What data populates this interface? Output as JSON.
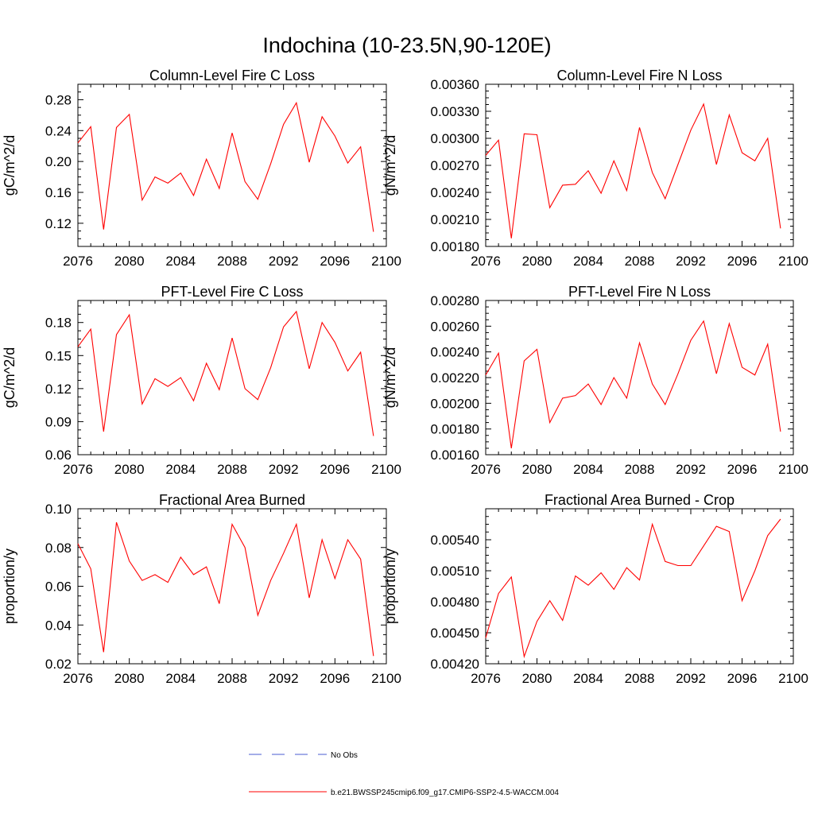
{
  "figure": {
    "title": "Indochina (10-23.5N,90-120E)"
  },
  "legend": {
    "items": [
      {
        "label": "No Obs",
        "color": "#4a5bd1",
        "style": "dashed"
      },
      {
        "label": "b.e21.BWSSP245cmip6.f09_g17.CMIP6-SSP2-4.5-WACCM.004",
        "color": "#ff0000",
        "style": "solid"
      }
    ]
  },
  "chart_data": [
    {
      "type": "line",
      "title": "Column-Level Fire C Loss",
      "xlabel": "",
      "ylabel": "gC/m^2/d",
      "xlim": [
        2076,
        2100
      ],
      "ylim": [
        0.09,
        0.3
      ],
      "xticks": [
        2076,
        2080,
        2084,
        2088,
        2092,
        2096,
        2100
      ],
      "yticks": [
        0.12,
        0.16,
        0.2,
        0.24,
        0.28
      ],
      "ytick_decimals": 2,
      "x": [
        2076,
        2077,
        2078,
        2079,
        2080,
        2081,
        2082,
        2083,
        2084,
        2085,
        2086,
        2087,
        2088,
        2089,
        2090,
        2091,
        2092,
        2093,
        2094,
        2095,
        2096,
        2097,
        2098,
        2099
      ],
      "series": [
        {
          "color": "#ff0000",
          "values": [
            0.224,
            0.245,
            0.112,
            0.244,
            0.261,
            0.15,
            0.18,
            0.172,
            0.185,
            0.156,
            0.203,
            0.165,
            0.237,
            0.174,
            0.151,
            0.197,
            0.248,
            0.276,
            0.199,
            0.258,
            0.233,
            0.198,
            0.219,
            0.109
          ]
        }
      ]
    },
    {
      "type": "line",
      "title": "Column-Level Fire N Loss",
      "xlabel": "",
      "ylabel": "gN/m^2/d",
      "xlim": [
        2076,
        2100
      ],
      "ylim": [
        0.0018,
        0.0036
      ],
      "xticks": [
        2076,
        2080,
        2084,
        2088,
        2092,
        2096,
        2100
      ],
      "yticks": [
        0.0018,
        0.0021,
        0.0024,
        0.0027,
        0.003,
        0.0033,
        0.0036
      ],
      "ytick_decimals": 5,
      "x": [
        2076,
        2077,
        2078,
        2079,
        2080,
        2081,
        2082,
        2083,
        2084,
        2085,
        2086,
        2087,
        2088,
        2089,
        2090,
        2091,
        2092,
        2093,
        2094,
        2095,
        2096,
        2097,
        2098,
        2099
      ],
      "series": [
        {
          "color": "#ff0000",
          "values": [
            0.00281,
            0.00298,
            0.00189,
            0.00305,
            0.00304,
            0.00223,
            0.00248,
            0.00249,
            0.00264,
            0.00239,
            0.00275,
            0.00242,
            0.00312,
            0.00262,
            0.00233,
            0.00271,
            0.00309,
            0.00338,
            0.00271,
            0.00326,
            0.00284,
            0.00275,
            0.003,
            0.002
          ]
        }
      ]
    },
    {
      "type": "line",
      "title": "PFT-Level Fire C Loss",
      "xlabel": "",
      "ylabel": "gC/m^2/d",
      "xlim": [
        2076,
        2100
      ],
      "ylim": [
        0.06,
        0.2
      ],
      "xticks": [
        2076,
        2080,
        2084,
        2088,
        2092,
        2096,
        2100
      ],
      "yticks": [
        0.06,
        0.09,
        0.12,
        0.15,
        0.18
      ],
      "ytick_decimals": 2,
      "x": [
        2076,
        2077,
        2078,
        2079,
        2080,
        2081,
        2082,
        2083,
        2084,
        2085,
        2086,
        2087,
        2088,
        2089,
        2090,
        2091,
        2092,
        2093,
        2094,
        2095,
        2096,
        2097,
        2098,
        2099
      ],
      "series": [
        {
          "color": "#ff0000",
          "values": [
            0.158,
            0.174,
            0.081,
            0.169,
            0.187,
            0.106,
            0.129,
            0.122,
            0.13,
            0.109,
            0.143,
            0.119,
            0.166,
            0.12,
            0.11,
            0.139,
            0.176,
            0.19,
            0.138,
            0.18,
            0.162,
            0.136,
            0.153,
            0.077
          ]
        }
      ]
    },
    {
      "type": "line",
      "title": "PFT-Level Fire N Loss",
      "xlabel": "",
      "ylabel": "gN/m^2/d",
      "xlim": [
        2076,
        2100
      ],
      "ylim": [
        0.0016,
        0.0028
      ],
      "xticks": [
        2076,
        2080,
        2084,
        2088,
        2092,
        2096,
        2100
      ],
      "yticks": [
        0.0016,
        0.0018,
        0.002,
        0.0022,
        0.0024,
        0.0026,
        0.0028
      ],
      "ytick_decimals": 5,
      "x": [
        2076,
        2077,
        2078,
        2079,
        2080,
        2081,
        2082,
        2083,
        2084,
        2085,
        2086,
        2087,
        2088,
        2089,
        2090,
        2091,
        2092,
        2093,
        2094,
        2095,
        2096,
        2097,
        2098,
        2099
      ],
      "series": [
        {
          "color": "#ff0000",
          "values": [
            0.00222,
            0.00239,
            0.00165,
            0.00233,
            0.00242,
            0.00185,
            0.00204,
            0.00206,
            0.00215,
            0.00199,
            0.0022,
            0.00204,
            0.00247,
            0.00215,
            0.00199,
            0.00223,
            0.00249,
            0.00264,
            0.00223,
            0.00262,
            0.00228,
            0.00222,
            0.00246,
            0.00178
          ]
        }
      ]
    },
    {
      "type": "line",
      "title": "Fractional Area Burned",
      "xlabel": "",
      "ylabel": "proportion/y",
      "xlim": [
        2076,
        2100
      ],
      "ylim": [
        0.02,
        0.1
      ],
      "xticks": [
        2076,
        2080,
        2084,
        2088,
        2092,
        2096,
        2100
      ],
      "yticks": [
        0.02,
        0.04,
        0.06,
        0.08,
        0.1
      ],
      "ytick_decimals": 2,
      "x": [
        2076,
        2077,
        2078,
        2079,
        2080,
        2081,
        2082,
        2083,
        2084,
        2085,
        2086,
        2087,
        2088,
        2089,
        2090,
        2091,
        2092,
        2093,
        2094,
        2095,
        2096,
        2097,
        2098,
        2099
      ],
      "series": [
        {
          "color": "#ff0000",
          "values": [
            0.082,
            0.069,
            0.026,
            0.093,
            0.073,
            0.063,
            0.066,
            0.062,
            0.075,
            0.066,
            0.07,
            0.051,
            0.092,
            0.08,
            0.045,
            0.063,
            0.077,
            0.092,
            0.054,
            0.084,
            0.064,
            0.084,
            0.074,
            0.024
          ]
        }
      ]
    },
    {
      "type": "line",
      "title": "Fractional Area Burned - Crop",
      "xlabel": "",
      "ylabel": "proportion/y",
      "xlim": [
        2076,
        2100
      ],
      "ylim": [
        0.0042,
        0.0057
      ],
      "xticks": [
        2076,
        2080,
        2084,
        2088,
        2092,
        2096,
        2100
      ],
      "yticks": [
        0.0042,
        0.0045,
        0.0048,
        0.0051,
        0.0054
      ],
      "ytick_decimals": 5,
      "x": [
        2076,
        2077,
        2078,
        2079,
        2080,
        2081,
        2082,
        2083,
        2084,
        2085,
        2086,
        2087,
        2088,
        2089,
        2090,
        2091,
        2092,
        2093,
        2094,
        2095,
        2096,
        2097,
        2098,
        2099
      ],
      "series": [
        {
          "color": "#ff0000",
          "values": [
            0.00445,
            0.00488,
            0.00504,
            0.00427,
            0.00461,
            0.00481,
            0.00462,
            0.00505,
            0.00496,
            0.00508,
            0.00492,
            0.00513,
            0.00501,
            0.00555,
            0.00519,
            0.00515,
            0.00515,
            0.00534,
            0.00553,
            0.00548,
            0.00481,
            0.0051,
            0.00544,
            0.0056
          ]
        }
      ]
    }
  ]
}
